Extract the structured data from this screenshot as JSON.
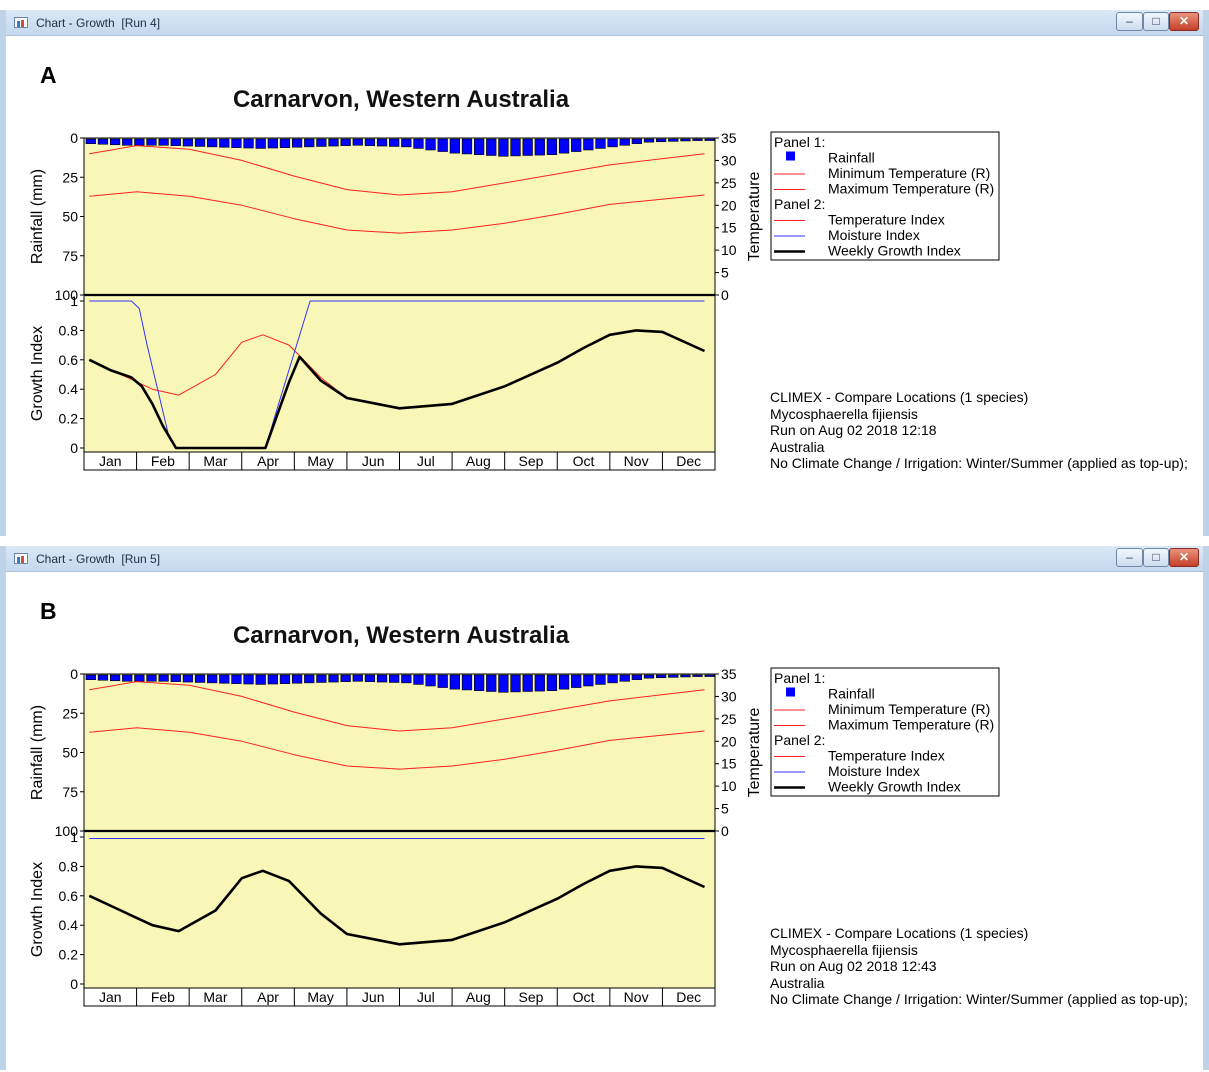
{
  "windows": [
    {
      "title": "Chart - Growth  [Run 4]",
      "panel_label": "A",
      "chart_title": "Carnarvon, Western Australia",
      "info": [
        "CLIMEX - Compare Locations (1 species)",
        "Mycosphaerella fijiensis",
        "Run on Aug 02 2018 12:18",
        "Australia",
        "No Climate Change / Irrigation: Winter/Summer (applied as top-up);"
      ]
    },
    {
      "title": "Chart - Growth  [Run 5]",
      "panel_label": "B",
      "chart_title": "Carnarvon, Western Australia",
      "info": [
        "CLIMEX - Compare Locations (1 species)",
        "Mycosphaerella fijiensis",
        "Run on Aug 02 2018 12:43",
        "Australia",
        "No Climate Change / Irrigation: Winter/Summer (applied as top-up);"
      ]
    }
  ],
  "window_buttons": {
    "minimize": "–",
    "maximize": "□",
    "close": "✕"
  },
  "icons": [
    "chart-window-icon",
    "minimize-icon",
    "maximize-icon",
    "close-icon"
  ],
  "legend": {
    "panel1_header": "Panel 1:",
    "panel2_header": "Panel 2:",
    "panel1_items": [
      {
        "label": "Rainfall",
        "swatch": "square",
        "color": "#0000ff"
      },
      {
        "label": "Minimum Temperature (R)",
        "swatch": "line",
        "color": "#ff2020"
      },
      {
        "label": "Maximum Temperature (R)",
        "swatch": "line",
        "color": "#ff2020"
      }
    ],
    "panel2_items": [
      {
        "label": "Temperature Index",
        "swatch": "line",
        "color": "#ff2020"
      },
      {
        "label": "Moisture Index",
        "swatch": "line",
        "color": "#3333ff"
      },
      {
        "label": "Weekly Growth Index",
        "swatch": "thick-line",
        "color": "#000000"
      }
    ]
  },
  "chart_data": [
    {
      "type": "line",
      "panel": "A",
      "months": [
        "Jan",
        "Feb",
        "Mar",
        "Apr",
        "May",
        "Jun",
        "Jul",
        "Aug",
        "Sep",
        "Oct",
        "Nov",
        "Dec"
      ],
      "plot_background": "#f8f7b8",
      "panel1": {
        "ylabel_left": "Rainfall (mm)",
        "ylabel_right": "Temperature",
        "left_ticks": [
          "0",
          "25",
          "50",
          "75",
          "100"
        ],
        "right_ticks": [
          "35",
          "30",
          "25",
          "20",
          "15",
          "10",
          "5",
          "0"
        ],
        "left_range": [
          0,
          100
        ],
        "right_range": [
          0,
          35
        ],
        "series": [
          {
            "name": "Rainfall",
            "kind": "bar",
            "axis": "left",
            "week": [
              1,
              4,
              7,
              11,
              15,
              19,
              23,
              27,
              31,
              35,
              39,
              43,
              47,
              51
            ],
            "values": [
              3,
              4,
              4,
              5,
              6,
              5,
              4,
              5,
              9,
              11,
              10,
              6,
              2,
              1
            ]
          },
          {
            "name": "Minimum Temperature (R)",
            "kind": "line",
            "axis": "right",
            "x_month": [
              0.1,
              1,
              2,
              3,
              4,
              5,
              6,
              7,
              8,
              9,
              10,
              11.8
            ],
            "values": [
              22,
              23,
              22,
              20,
              17,
              14.5,
              13.8,
              14.5,
              16,
              18,
              20.2,
              22.3
            ]
          },
          {
            "name": "Maximum Temperature (R)",
            "kind": "line",
            "axis": "right",
            "x_month": [
              0.1,
              1,
              2,
              3,
              4,
              5,
              6,
              7,
              8,
              9,
              10,
              11.8
            ],
            "values": [
              31.5,
              33.3,
              32.5,
              30,
              26.5,
              23.5,
              22.3,
              23,
              25,
              27,
              29,
              31.5
            ]
          }
        ]
      },
      "panel2": {
        "ylabel": "Growth Index",
        "ticks": [
          "0",
          "0.2",
          "0.4",
          "0.6",
          "0.8",
          "1"
        ],
        "range": [
          0,
          1
        ],
        "series": [
          {
            "name": "Temperature Index",
            "color": "#ff2020",
            "x_month": [
              0.1,
              0.7,
              1.3,
              1.8,
              2.5,
              3.0,
              3.4,
              3.9,
              4.5,
              5.0,
              6.0,
              7.0,
              8.0,
              9.0,
              9.5,
              10.0,
              10.5,
              11.0,
              11.8
            ],
            "values": [
              0.6,
              0.5,
              0.4,
              0.36,
              0.5,
              0.72,
              0.77,
              0.7,
              0.48,
              0.34,
              0.27,
              0.3,
              0.42,
              0.58,
              0.68,
              0.77,
              0.8,
              0.79,
              0.66
            ]
          },
          {
            "name": "Moisture Index",
            "color": "#3333ff",
            "x_month": [
              0.1,
              0.9,
              1.05,
              1.2,
              1.6,
              1.75,
              3.45,
              3.7,
              4.3,
              11.8
            ],
            "values": [
              1,
              1,
              0.95,
              0.7,
              0.1,
              0,
              0,
              0.3,
              1,
              1
            ]
          },
          {
            "name": "Weekly Growth Index",
            "color": "#000000",
            "x_month": [
              0.1,
              0.5,
              0.9,
              1.1,
              1.3,
              1.5,
              1.75,
              3.45,
              3.65,
              3.9,
              4.1,
              4.5,
              5.0,
              6.0,
              7.0,
              8.0,
              9.0,
              9.5,
              10.0,
              10.5,
              11.0,
              11.8
            ],
            "values": [
              0.6,
              0.53,
              0.48,
              0.42,
              0.3,
              0.15,
              0,
              0,
              0.2,
              0.45,
              0.62,
              0.46,
              0.34,
              0.27,
              0.3,
              0.42,
              0.58,
              0.68,
              0.77,
              0.8,
              0.79,
              0.66
            ]
          }
        ]
      }
    },
    {
      "type": "line",
      "panel": "B",
      "months": [
        "Jan",
        "Feb",
        "Mar",
        "Apr",
        "May",
        "Jun",
        "Jul",
        "Aug",
        "Sep",
        "Oct",
        "Nov",
        "Dec"
      ],
      "plot_background": "#f8f7b8",
      "panel1": {
        "ylabel_left": "Rainfall (mm)",
        "ylabel_right": "Temperature",
        "left_ticks": [
          "0",
          "25",
          "50",
          "75",
          "100"
        ],
        "right_ticks": [
          "35",
          "30",
          "25",
          "20",
          "15",
          "10",
          "5",
          "0"
        ],
        "left_range": [
          0,
          100
        ],
        "right_range": [
          0,
          35
        ],
        "series": [
          {
            "name": "Rainfall",
            "kind": "bar",
            "axis": "left",
            "week": [
              1,
              4,
              7,
              11,
              15,
              19,
              23,
              27,
              31,
              35,
              39,
              43,
              47,
              51
            ],
            "values": [
              3,
              4,
              4,
              5,
              6,
              5,
              4,
              5,
              9,
              11,
              10,
              6,
              2,
              1
            ]
          },
          {
            "name": "Minimum Temperature (R)",
            "kind": "line",
            "axis": "right",
            "x_month": [
              0.1,
              1,
              2,
              3,
              4,
              5,
              6,
              7,
              8,
              9,
              10,
              11.8
            ],
            "values": [
              22,
              23,
              22,
              20,
              17,
              14.5,
              13.8,
              14.5,
              16,
              18,
              20.2,
              22.3
            ]
          },
          {
            "name": "Maximum Temperature (R)",
            "kind": "line",
            "axis": "right",
            "x_month": [
              0.1,
              1,
              2,
              3,
              4,
              5,
              6,
              7,
              8,
              9,
              10,
              11.8
            ],
            "values": [
              31.5,
              33.3,
              32.5,
              30,
              26.5,
              23.5,
              22.3,
              23,
              25,
              27,
              29,
              31.5
            ]
          }
        ]
      },
      "panel2": {
        "ylabel": "Growth Index",
        "ticks": [
          "0",
          "0.2",
          "0.4",
          "0.6",
          "0.8",
          "1"
        ],
        "range": [
          0,
          1
        ],
        "series": [
          {
            "name": "Temperature Index",
            "color": "#ff2020",
            "x_month": [
              0.1,
              0.7,
              1.3,
              1.8,
              2.5,
              3.0,
              3.4,
              3.9,
              4.5,
              5.0,
              6.0,
              7.0,
              8.0,
              9.0,
              9.5,
              10.0,
              10.5,
              11.0,
              11.8
            ],
            "values": [
              0.6,
              0.5,
              0.4,
              0.36,
              0.5,
              0.72,
              0.77,
              0.7,
              0.48,
              0.34,
              0.27,
              0.3,
              0.42,
              0.58,
              0.68,
              0.77,
              0.8,
              0.79,
              0.66
            ]
          },
          {
            "name": "Moisture Index",
            "color": "#3333ff",
            "x_month": [
              0.1,
              11.8
            ],
            "values": [
              0.99,
              0.99
            ]
          },
          {
            "name": "Weekly Growth Index",
            "color": "#000000",
            "x_month": [
              0.1,
              0.7,
              1.3,
              1.8,
              2.5,
              3.0,
              3.4,
              3.9,
              4.5,
              5.0,
              6.0,
              7.0,
              8.0,
              9.0,
              9.5,
              10.0,
              10.5,
              11.0,
              11.8
            ],
            "values": [
              0.6,
              0.5,
              0.4,
              0.36,
              0.5,
              0.72,
              0.77,
              0.7,
              0.48,
              0.34,
              0.27,
              0.3,
              0.42,
              0.58,
              0.68,
              0.77,
              0.8,
              0.79,
              0.66
            ]
          }
        ]
      }
    }
  ]
}
